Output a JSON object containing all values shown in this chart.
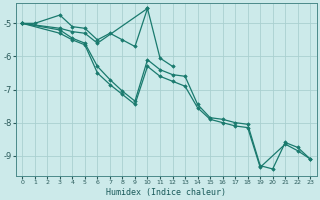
{
  "xlabel": "Humidex (Indice chaleur)",
  "background_color": "#cceaea",
  "grid_color": "#aad0d0",
  "line_color": "#1a7a6e",
  "xlim": [
    -0.5,
    23.5
  ],
  "ylim": [
    -9.6,
    -4.4
  ],
  "xticks": [
    0,
    1,
    2,
    3,
    4,
    5,
    6,
    7,
    8,
    9,
    10,
    11,
    12,
    13,
    14,
    15,
    16,
    17,
    18,
    19,
    20,
    21,
    22,
    23
  ],
  "yticks": [
    -9,
    -8,
    -7,
    -6,
    -5
  ],
  "series": [
    [
      -5.0,
      -5.0,
      null,
      -4.75,
      -5.1,
      -5.15,
      -5.5,
      -5.3,
      -5.5,
      -5.7,
      -4.55,
      -6.05,
      -6.3,
      null,
      null,
      null,
      null,
      null,
      null,
      null,
      null,
      null,
      null,
      null
    ],
    [
      -5.0,
      null,
      null,
      -5.15,
      -5.25,
      -5.3,
      -5.6,
      null,
      null,
      null,
      -4.55,
      null,
      null,
      null,
      null,
      null,
      null,
      null,
      null,
      null,
      null,
      null,
      null,
      null
    ],
    [
      -5.0,
      null,
      null,
      -5.2,
      -5.45,
      -5.6,
      -6.3,
      -6.7,
      -7.05,
      -7.35,
      -6.1,
      -6.4,
      -6.55,
      -6.6,
      -7.45,
      -7.85,
      -7.9,
      -8.0,
      -8.05,
      -9.3,
      -9.4,
      -8.6,
      -8.75,
      -9.1
    ],
    [
      -5.0,
      null,
      null,
      -5.3,
      -5.5,
      -5.65,
      -6.5,
      -6.85,
      -7.15,
      -7.45,
      -6.3,
      -6.6,
      -6.75,
      -6.9,
      -7.55,
      -7.9,
      -8.0,
      -8.1,
      -8.15,
      -9.35,
      null,
      -8.65,
      -8.85,
      -9.1
    ]
  ]
}
